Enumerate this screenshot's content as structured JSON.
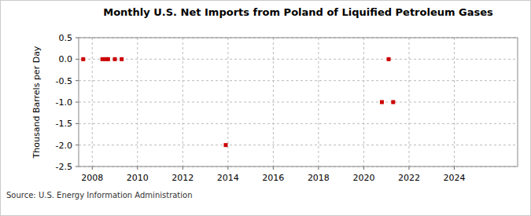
{
  "chart_data": {
    "type": "scatter",
    "title": "Monthly U.S. Net Imports from Poland of Liquified Petroleum Gases",
    "y_label": "Thousand Barrels per Day",
    "source": "Source: U.S. Energy Information Administration",
    "x": [
      2007.6,
      2008.45,
      2008.6,
      2008.7,
      2009.0,
      2009.3,
      2013.9,
      2020.8,
      2021.1,
      2021.3
    ],
    "values": [
      0,
      0,
      0,
      0,
      0,
      0,
      -2,
      -1,
      0,
      -1
    ],
    "color": "#cc0000",
    "marker": "square",
    "xlim": [
      2007.4,
      2026.8
    ],
    "xticks": [
      2008,
      2010,
      2012,
      2014,
      2016,
      2018,
      2020,
      2022,
      2024
    ],
    "ylim": [
      -2.5,
      0.5
    ],
    "yticks": [
      -2.5,
      {
        "value": -2,
        "label": "-2.0"
      },
      -1.5,
      {
        "value": -1,
        "label": "-1.0"
      },
      -0.5,
      {
        "value": 0,
        "label": "0.0"
      },
      0.5
    ],
    "grid": true
  }
}
